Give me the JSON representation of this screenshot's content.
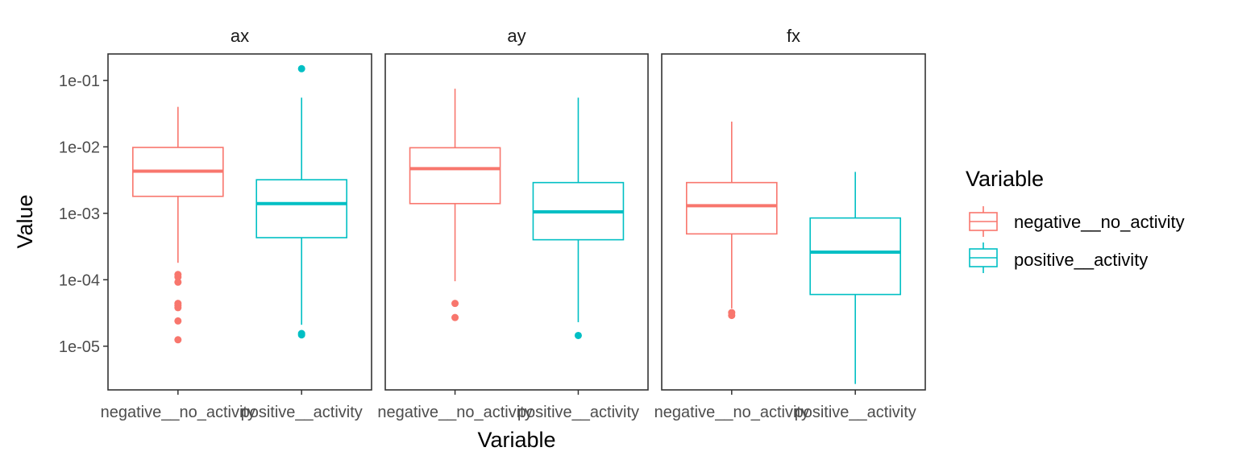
{
  "chart_data": {
    "type": "boxplot",
    "xlabel": "Variable",
    "ylabel": "Value",
    "scale": "log10",
    "ylim": [
      2.2e-06,
      0.25
    ],
    "y_ticks": [
      {
        "value": 0.1,
        "label": "1e-01"
      },
      {
        "value": 0.01,
        "label": "1e-02"
      },
      {
        "value": 0.001,
        "label": "1e-03"
      },
      {
        "value": 0.0001,
        "label": "1e-04"
      },
      {
        "value": 1e-05,
        "label": "1e-05"
      }
    ],
    "categories": [
      "negative__no_activity",
      "positive__activity"
    ],
    "legend": {
      "title": "Variable",
      "position": "right",
      "entries": [
        {
          "label": "negative__no_activity",
          "color": "#F8766D"
        },
        {
          "label": "positive__activity",
          "color": "#00BFC4"
        }
      ]
    },
    "panels": [
      {
        "title": "ax",
        "boxes": [
          {
            "category": "negative__no_activity",
            "min": 0.00018,
            "q1": 0.0018,
            "median": 0.0043,
            "q3": 0.0098,
            "max": 0.04,
            "outliers": [
              0.00012,
              0.00011,
              9.2e-05,
              4.4e-05,
              4.1e-05,
              3.8e-05,
              2.4e-05,
              1.25e-05
            ]
          },
          {
            "category": "positive__activity",
            "min": 2.1e-05,
            "q1": 0.00043,
            "median": 0.0014,
            "q3": 0.0032,
            "max": 0.055,
            "outliers": [
              0.15,
              1.55e-05,
              1.48e-05
            ]
          }
        ]
      },
      {
        "title": "ay",
        "boxes": [
          {
            "category": "negative__no_activity",
            "min": 9.5e-05,
            "q1": 0.0014,
            "median": 0.0047,
            "q3": 0.0097,
            "max": 0.075,
            "outliers": [
              4.4e-05,
              2.7e-05
            ]
          },
          {
            "category": "positive__activity",
            "min": 2.3e-05,
            "q1": 0.0004,
            "median": 0.00105,
            "q3": 0.0029,
            "max": 0.055,
            "outliers": [
              1.45e-05
            ]
          }
        ]
      },
      {
        "title": "fx",
        "boxes": [
          {
            "category": "negative__no_activity",
            "min": 3.7e-05,
            "q1": 0.00049,
            "median": 0.0013,
            "q3": 0.0029,
            "max": 0.024,
            "outliers": [
              3.2e-05,
              2.9e-05
            ]
          },
          {
            "category": "positive__activity",
            "min": 2.7e-06,
            "q1": 6e-05,
            "median": 0.00026,
            "q3": 0.00085,
            "max": 0.0042,
            "outliers": []
          }
        ]
      }
    ]
  }
}
